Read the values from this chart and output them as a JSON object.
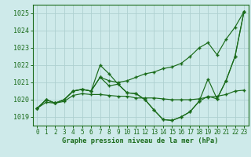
{
  "title": "Graphe pression niveau de la mer (hPa)",
  "bg_color": "#ceeaea",
  "grid_color": "#aed0d0",
  "line_color": "#1a6b1a",
  "xlim": [
    -0.5,
    23.5
  ],
  "ylim": [
    1018.5,
    1025.5
  ],
  "yticks": [
    1019,
    1020,
    1021,
    1022,
    1023,
    1024,
    1025
  ],
  "xticks": [
    0,
    1,
    2,
    3,
    4,
    5,
    6,
    7,
    8,
    9,
    10,
    11,
    12,
    13,
    14,
    15,
    16,
    17,
    18,
    19,
    20,
    21,
    22,
    23
  ],
  "series": [
    [
      1019.5,
      1020.0,
      1019.8,
      1020.0,
      1020.5,
      1020.6,
      1020.5,
      1022.0,
      1021.5,
      1020.9,
      1020.4,
      1020.35,
      1020.0,
      1019.4,
      1018.85,
      1018.8,
      1019.0,
      1019.3,
      1019.9,
      1021.2,
      1020.05,
      1021.1,
      1022.5,
      1025.1
    ],
    [
      1019.5,
      1020.0,
      1019.8,
      1020.0,
      1020.5,
      1020.6,
      1020.5,
      1021.3,
      1021.1,
      1021.0,
      1021.1,
      1021.3,
      1021.5,
      1021.6,
      1021.8,
      1021.9,
      1022.1,
      1022.5,
      1023.0,
      1023.3,
      1022.6,
      1023.5,
      1024.2,
      1025.1
    ],
    [
      1019.5,
      1020.0,
      1019.8,
      1020.0,
      1020.5,
      1020.6,
      1020.5,
      1021.3,
      1020.8,
      1020.9,
      1020.4,
      1020.35,
      1020.0,
      1019.4,
      1018.85,
      1018.8,
      1019.0,
      1019.3,
      1019.9,
      1020.2,
      1020.05,
      1021.1,
      1022.5,
      1025.1
    ],
    [
      1019.5,
      1019.85,
      1019.8,
      1019.9,
      1020.25,
      1020.35,
      1020.3,
      1020.3,
      1020.25,
      1020.2,
      1020.2,
      1020.1,
      1020.1,
      1020.1,
      1020.05,
      1020.0,
      1020.0,
      1020.0,
      1020.05,
      1020.15,
      1020.2,
      1020.3,
      1020.5,
      1020.55
    ]
  ]
}
